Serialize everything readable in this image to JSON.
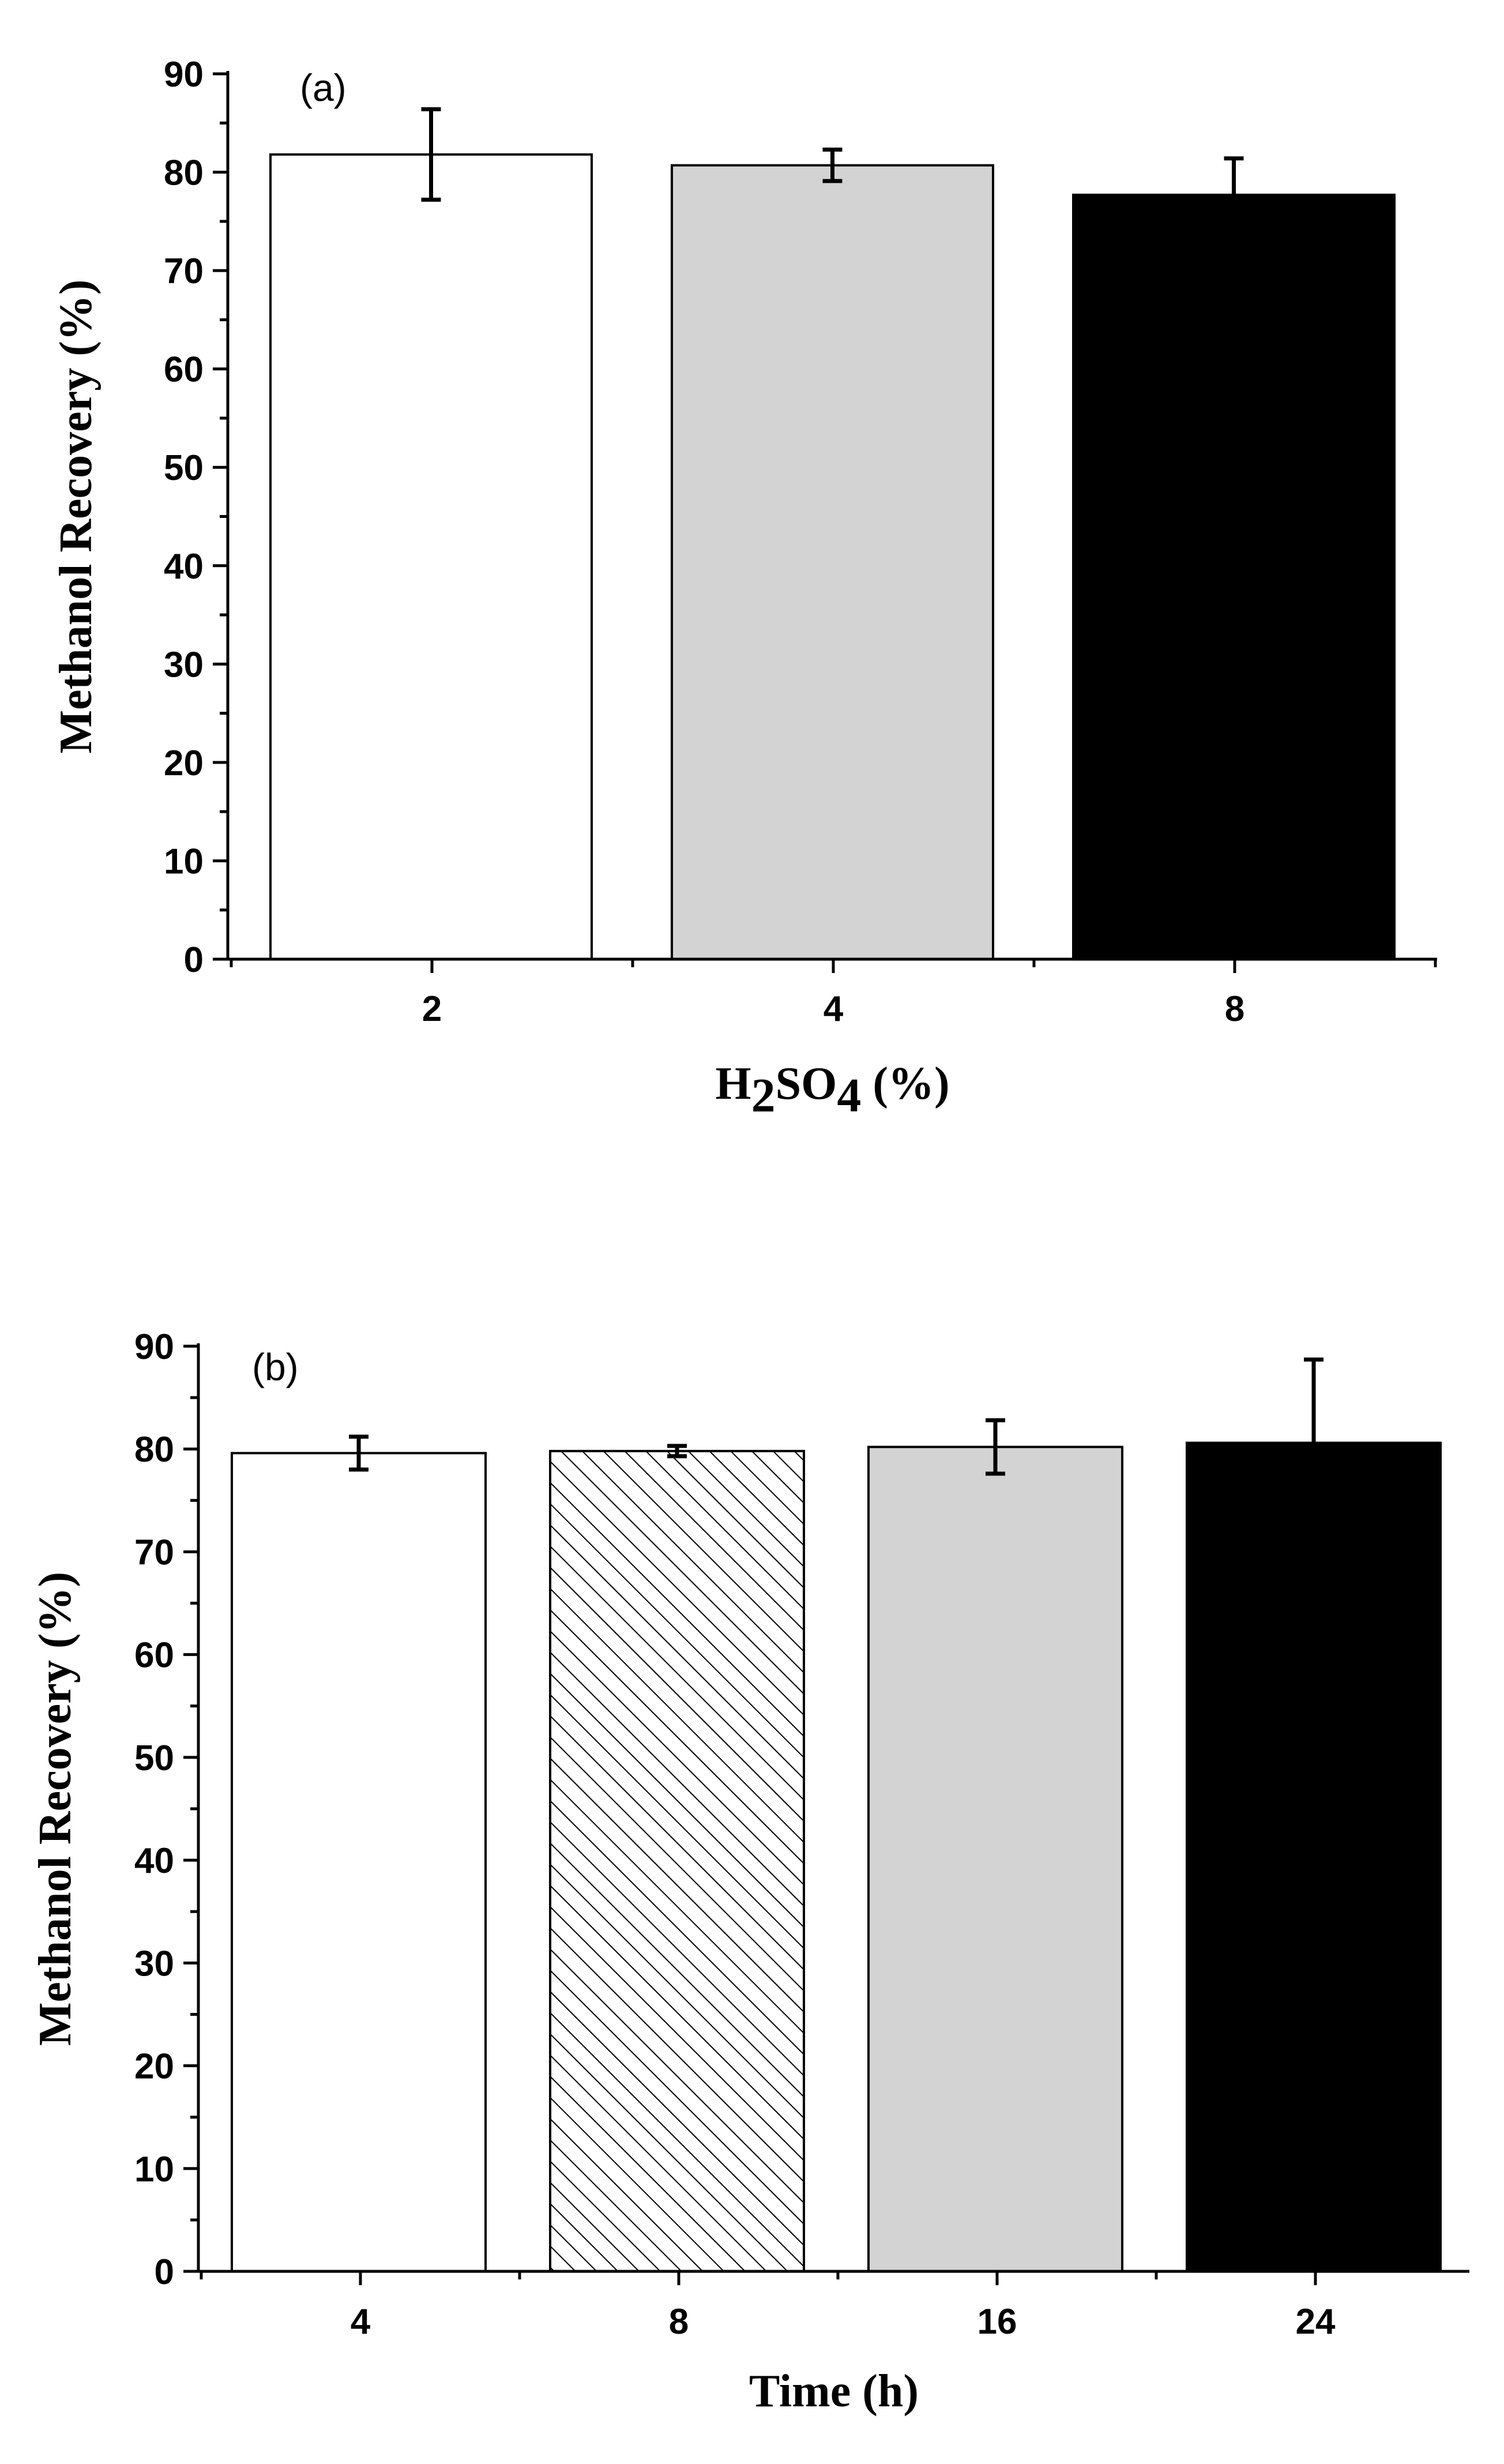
{
  "chart_data": [
    {
      "type": "bar",
      "panel_label": "(a)",
      "categories": [
        "2",
        "4",
        "8"
      ],
      "values": [
        81.8,
        80.7,
        77.7
      ],
      "errors": [
        4.6,
        1.6,
        3.7
      ],
      "bar_colors": [
        "#ffffff",
        "#d3d3d3",
        "#000000"
      ],
      "bar_patterns": [
        "solid",
        "solid",
        "solid"
      ],
      "xlabel": {
        "main": "H",
        "sub1": "2",
        "mid": "SO",
        "sub2": "4",
        "tail": " (%)"
      },
      "ylabel": "Methanol Recovery (%)",
      "ylim": [
        0,
        90
      ],
      "yticks": [
        0,
        10,
        20,
        30,
        40,
        50,
        60,
        70,
        80,
        90
      ],
      "grid": false
    },
    {
      "type": "bar",
      "panel_label": "(b)",
      "categories": [
        "4",
        "8",
        "16",
        "24"
      ],
      "values": [
        79.6,
        79.8,
        80.2,
        80.6
      ],
      "errors": [
        1.6,
        0.5,
        2.6,
        8.1
      ],
      "bar_colors": [
        "#ffffff",
        "#ffffff",
        "#d3d3d3",
        "#000000"
      ],
      "bar_patterns": [
        "solid",
        "hatched",
        "solid",
        "solid"
      ],
      "xlabel": {
        "main": "Time (h)"
      },
      "ylabel": "Methanol Recovery (%)",
      "ylim": [
        0,
        90
      ],
      "yticks": [
        0,
        10,
        20,
        30,
        40,
        50,
        60,
        70,
        80,
        90
      ],
      "grid": false
    }
  ]
}
